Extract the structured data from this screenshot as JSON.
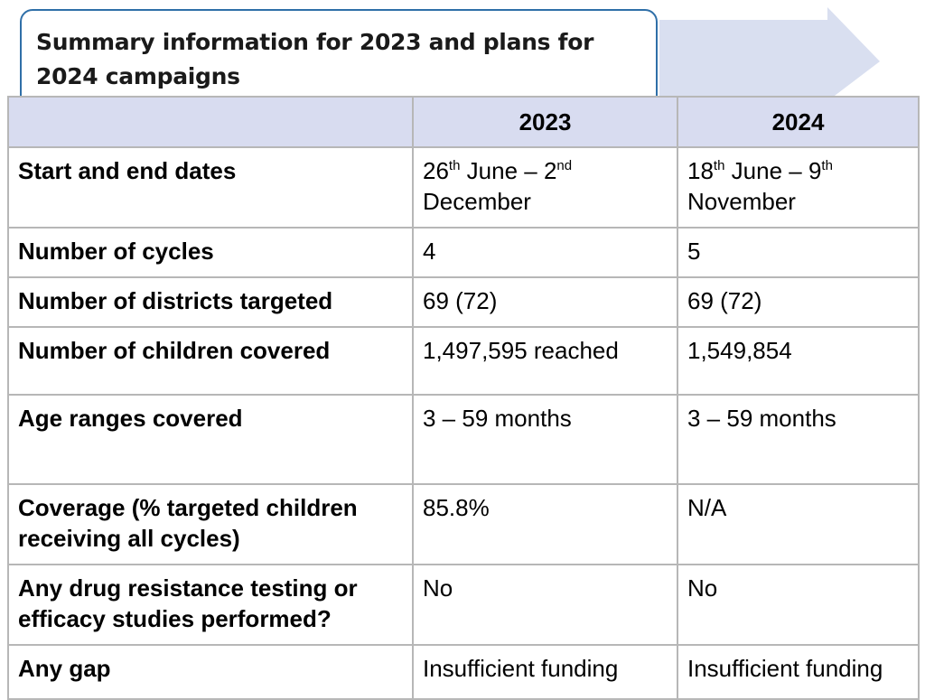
{
  "title": "Summary information for 2023 and plans for 2024 campaigns",
  "colors": {
    "header_bg": "#d8dcf0",
    "arrow": "#d9dff0",
    "title_border": "#2f6fa8",
    "grid": "#b7b7b7"
  },
  "table": {
    "header": {
      "label": "",
      "col1": "2023",
      "col2": "2024"
    },
    "rows": [
      {
        "label": "Start and end dates",
        "v2023": {
          "d1": "26",
          "s1": "th",
          "m1": " June – 2",
          "s2": "nd",
          "m2": "December"
        },
        "v2024": {
          "d1": "18",
          "s1": "th",
          "m1": " June – 9",
          "s2": "th",
          "m2": "November"
        }
      },
      {
        "label": "Number of cycles",
        "v2023": "4",
        "v2024": "5"
      },
      {
        "label": "Number of districts targeted",
        "v2023": "69 (72)",
        "v2024": "69 (72)"
      },
      {
        "label": "Number of children covered",
        "v2023": "1,497,595 reached",
        "v2024": "1,549,854"
      },
      {
        "label": "Age ranges covered",
        "v2023": "3 – 59 months",
        "v2024": "3 – 59 months"
      },
      {
        "label": "Coverage (% targeted children receiving all cycles)",
        "v2023": "85.8%",
        "v2024": "N/A"
      },
      {
        "label": "Any drug resistance testing or efficacy studies performed?",
        "v2023": "No",
        "v2024": "No"
      },
      {
        "label": "Any gap",
        "v2023": "Insufficient funding",
        "v2024": "Insufficient funding"
      }
    ]
  }
}
